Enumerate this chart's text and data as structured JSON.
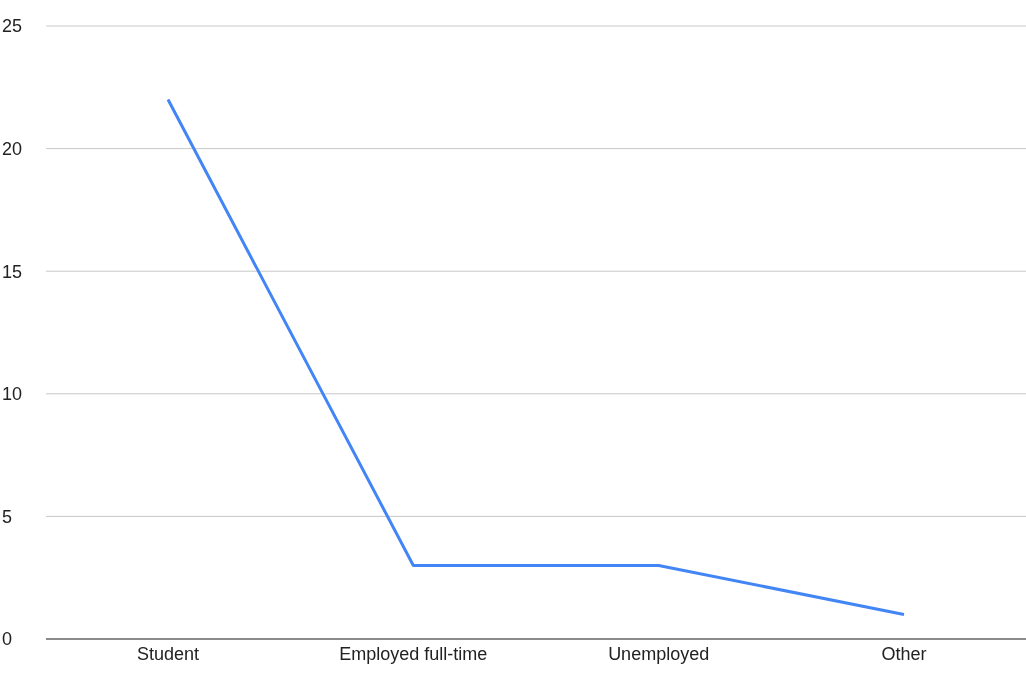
{
  "chart_data": {
    "type": "line",
    "categories": [
      "Student",
      "Employed full-time",
      "Unemployed",
      "Other"
    ],
    "series": [
      {
        "color": "#4285f4",
        "values": [
          22,
          3,
          3,
          1
        ]
      }
    ],
    "ylim": [
      0,
      25
    ],
    "yticks": [
      0,
      5,
      10,
      15,
      20,
      25
    ],
    "grid": "y",
    "marker": "none",
    "line_style": "solid"
  }
}
